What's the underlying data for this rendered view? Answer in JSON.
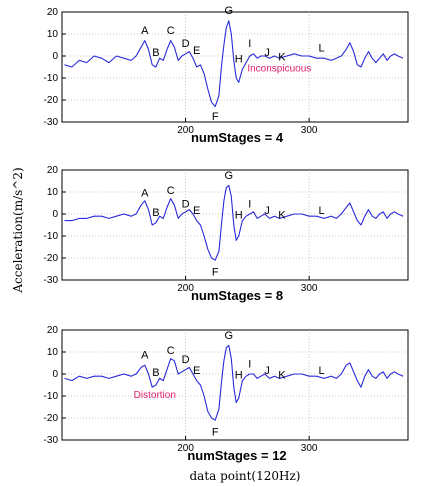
{
  "chart_data": {
    "type": "line",
    "ylabel": "Acceleration(m/s^2)",
    "xlabel": "data point(120Hz)",
    "xlim": [
      100,
      380
    ],
    "ylim": [
      -30,
      20
    ],
    "xticks": [
      200,
      300
    ],
    "yticks": [
      -30,
      -20,
      -10,
      0,
      10,
      20
    ],
    "series_color": "#2a2adc",
    "annotation_color": "#e0206a",
    "grid": true,
    "panels": [
      {
        "title": "numStages = 4",
        "points": [
          [
            102,
            -4
          ],
          [
            108,
            -5
          ],
          [
            114,
            -2
          ],
          [
            120,
            -3
          ],
          [
            126,
            0
          ],
          [
            132,
            -1
          ],
          [
            138,
            -3
          ],
          [
            144,
            0
          ],
          [
            150,
            -1
          ],
          [
            156,
            -2
          ],
          [
            160,
            0
          ],
          [
            164,
            4
          ],
          [
            167,
            7
          ],
          [
            170,
            3
          ],
          [
            173,
            -4
          ],
          [
            176,
            -5
          ],
          [
            179,
            -1
          ],
          [
            182,
            -2
          ],
          [
            185,
            3
          ],
          [
            188,
            7
          ],
          [
            191,
            4
          ],
          [
            194,
            -2
          ],
          [
            197,
            0
          ],
          [
            200,
            1
          ],
          [
            203,
            2
          ],
          [
            206,
            -1
          ],
          [
            209,
            -5
          ],
          [
            212,
            -4
          ],
          [
            215,
            -8
          ],
          [
            218,
            -15
          ],
          [
            221,
            -21
          ],
          [
            224,
            -23
          ],
          [
            227,
            -18
          ],
          [
            229,
            -5
          ],
          [
            231,
            5
          ],
          [
            233,
            13
          ],
          [
            235,
            16
          ],
          [
            237,
            10
          ],
          [
            239,
            -2
          ],
          [
            241,
            -10
          ],
          [
            243,
            -12
          ],
          [
            246,
            -6
          ],
          [
            249,
            -3
          ],
          [
            252,
            0
          ],
          [
            255,
            1
          ],
          [
            258,
            -1
          ],
          [
            261,
            0
          ],
          [
            264,
            0
          ],
          [
            268,
            -1
          ],
          [
            272,
            0
          ],
          [
            276,
            -1
          ],
          [
            282,
            0
          ],
          [
            288,
            1
          ],
          [
            294,
            0
          ],
          [
            300,
            0
          ],
          [
            306,
            -1
          ],
          [
            312,
            -1
          ],
          [
            318,
            -2
          ],
          [
            322,
            -1
          ],
          [
            326,
            0
          ],
          [
            330,
            3
          ],
          [
            333,
            6
          ],
          [
            336,
            2
          ],
          [
            339,
            -4
          ],
          [
            342,
            -5
          ],
          [
            345,
            -1
          ],
          [
            348,
            2
          ],
          [
            351,
            -1
          ],
          [
            354,
            -3
          ],
          [
            357,
            -1
          ],
          [
            360,
            1
          ],
          [
            363,
            -2
          ],
          [
            366,
            0
          ],
          [
            369,
            1
          ],
          [
            372,
            0
          ],
          [
            376,
            -1
          ]
        ],
        "labels": [
          {
            "text": "A",
            "x": 167,
            "y": 10
          },
          {
            "text": "B",
            "x": 176,
            "y": 0
          },
          {
            "text": "C",
            "x": 188,
            "y": 10
          },
          {
            "text": "D",
            "x": 200,
            "y": 4
          },
          {
            "text": "E",
            "x": 209,
            "y": 1
          },
          {
            "text": "F",
            "x": 224,
            "y": -29
          },
          {
            "text": "G",
            "x": 235,
            "y": 19
          },
          {
            "text": "H",
            "x": 243,
            "y": -3
          },
          {
            "text": "I",
            "x": 252,
            "y": 4
          },
          {
            "text": "J",
            "x": 266,
            "y": 0
          },
          {
            "text": "K",
            "x": 278,
            "y": -2
          },
          {
            "text": "L",
            "x": 310,
            "y": 2
          }
        ],
        "annotation": {
          "text": "Inconspicuous",
          "x": 250,
          "y": -7
        }
      },
      {
        "title": "numStages = 8",
        "points": [
          [
            102,
            -3
          ],
          [
            108,
            -3
          ],
          [
            114,
            -2
          ],
          [
            120,
            -2
          ],
          [
            126,
            -1
          ],
          [
            132,
            -1
          ],
          [
            138,
            -2
          ],
          [
            144,
            -1
          ],
          [
            150,
            0
          ],
          [
            156,
            -1
          ],
          [
            160,
            0
          ],
          [
            164,
            4
          ],
          [
            167,
            6
          ],
          [
            170,
            2
          ],
          [
            173,
            -5
          ],
          [
            176,
            -4
          ],
          [
            179,
            -1
          ],
          [
            182,
            -2
          ],
          [
            185,
            3
          ],
          [
            188,
            7
          ],
          [
            191,
            4
          ],
          [
            194,
            -2
          ],
          [
            197,
            0
          ],
          [
            200,
            1
          ],
          [
            203,
            2
          ],
          [
            206,
            0
          ],
          [
            209,
            -3
          ],
          [
            212,
            -5
          ],
          [
            215,
            -10
          ],
          [
            218,
            -16
          ],
          [
            221,
            -20
          ],
          [
            224,
            -21
          ],
          [
            227,
            -17
          ],
          [
            229,
            -5
          ],
          [
            231,
            6
          ],
          [
            233,
            12
          ],
          [
            235,
            13
          ],
          [
            237,
            8
          ],
          [
            239,
            -5
          ],
          [
            241,
            -12
          ],
          [
            243,
            -10
          ],
          [
            246,
            -3
          ],
          [
            249,
            -1
          ],
          [
            252,
            0
          ],
          [
            255,
            1
          ],
          [
            258,
            -2
          ],
          [
            261,
            -1
          ],
          [
            264,
            0
          ],
          [
            268,
            -2
          ],
          [
            272,
            -1
          ],
          [
            276,
            -2
          ],
          [
            282,
            -1
          ],
          [
            288,
            0
          ],
          [
            294,
            0
          ],
          [
            300,
            -1
          ],
          [
            306,
            -1
          ],
          [
            312,
            -2
          ],
          [
            318,
            -1
          ],
          [
            322,
            -2
          ],
          [
            326,
            0
          ],
          [
            330,
            3
          ],
          [
            333,
            5
          ],
          [
            336,
            1
          ],
          [
            339,
            -3
          ],
          [
            342,
            -5
          ],
          [
            345,
            -1
          ],
          [
            348,
            2
          ],
          [
            351,
            -1
          ],
          [
            354,
            -2
          ],
          [
            357,
            0
          ],
          [
            360,
            1
          ],
          [
            363,
            -2
          ],
          [
            366,
            0
          ],
          [
            369,
            1
          ],
          [
            372,
            0
          ],
          [
            376,
            -1
          ]
        ],
        "labels": [
          {
            "text": "A",
            "x": 167,
            "y": 8
          },
          {
            "text": "B",
            "x": 176,
            "y": -1
          },
          {
            "text": "C",
            "x": 188,
            "y": 9
          },
          {
            "text": "D",
            "x": 200,
            "y": 3
          },
          {
            "text": "E",
            "x": 209,
            "y": 0
          },
          {
            "text": "F",
            "x": 224,
            "y": -28
          },
          {
            "text": "G",
            "x": 235,
            "y": 16
          },
          {
            "text": "H",
            "x": 243,
            "y": -2
          },
          {
            "text": "I",
            "x": 252,
            "y": 3
          },
          {
            "text": "J",
            "x": 266,
            "y": 0
          },
          {
            "text": "K",
            "x": 278,
            "y": -2
          },
          {
            "text": "L",
            "x": 310,
            "y": 0
          }
        ]
      },
      {
        "title": "numStages = 12",
        "points": [
          [
            102,
            -2
          ],
          [
            108,
            -3
          ],
          [
            114,
            -1
          ],
          [
            120,
            -2
          ],
          [
            126,
            -1
          ],
          [
            132,
            -1
          ],
          [
            138,
            -2
          ],
          [
            144,
            -1
          ],
          [
            150,
            0
          ],
          [
            156,
            -1
          ],
          [
            160,
            0
          ],
          [
            164,
            3
          ],
          [
            167,
            4
          ],
          [
            170,
            0
          ],
          [
            173,
            -6
          ],
          [
            176,
            -5
          ],
          [
            179,
            -2
          ],
          [
            182,
            -3
          ],
          [
            185,
            2
          ],
          [
            188,
            7
          ],
          [
            191,
            6
          ],
          [
            194,
            0
          ],
          [
            197,
            1
          ],
          [
            200,
            2
          ],
          [
            203,
            3
          ],
          [
            206,
            0
          ],
          [
            209,
            -3
          ],
          [
            212,
            -5
          ],
          [
            215,
            -10
          ],
          [
            218,
            -17
          ],
          [
            221,
            -20
          ],
          [
            224,
            -21
          ],
          [
            227,
            -16
          ],
          [
            229,
            -4
          ],
          [
            231,
            6
          ],
          [
            233,
            12
          ],
          [
            235,
            13
          ],
          [
            237,
            7
          ],
          [
            239,
            -6
          ],
          [
            241,
            -13
          ],
          [
            243,
            -11
          ],
          [
            246,
            -3
          ],
          [
            249,
            -1
          ],
          [
            252,
            0
          ],
          [
            255,
            0
          ],
          [
            258,
            -2
          ],
          [
            261,
            -1
          ],
          [
            264,
            0
          ],
          [
            268,
            -2
          ],
          [
            272,
            -1
          ],
          [
            276,
            -2
          ],
          [
            282,
            -1
          ],
          [
            288,
            0
          ],
          [
            294,
            0
          ],
          [
            300,
            -1
          ],
          [
            306,
            -1
          ],
          [
            312,
            -2
          ],
          [
            318,
            -1
          ],
          [
            322,
            -2
          ],
          [
            326,
            0
          ],
          [
            330,
            4
          ],
          [
            333,
            5
          ],
          [
            336,
            1
          ],
          [
            339,
            -3
          ],
          [
            342,
            -6
          ],
          [
            345,
            -1
          ],
          [
            348,
            2
          ],
          [
            351,
            -1
          ],
          [
            354,
            -2
          ],
          [
            357,
            0
          ],
          [
            360,
            1
          ],
          [
            363,
            -2
          ],
          [
            366,
            0
          ],
          [
            369,
            1
          ],
          [
            372,
            0
          ],
          [
            376,
            -1
          ]
        ],
        "labels": [
          {
            "text": "A",
            "x": 167,
            "y": 7
          },
          {
            "text": "B",
            "x": 176,
            "y": -1
          },
          {
            "text": "C",
            "x": 188,
            "y": 9
          },
          {
            "text": "D",
            "x": 200,
            "y": 5
          },
          {
            "text": "E",
            "x": 209,
            "y": 0
          },
          {
            "text": "F",
            "x": 224,
            "y": -28
          },
          {
            "text": "G",
            "x": 235,
            "y": 16
          },
          {
            "text": "H",
            "x": 243,
            "y": -2
          },
          {
            "text": "I",
            "x": 252,
            "y": 3
          },
          {
            "text": "J",
            "x": 266,
            "y": 0
          },
          {
            "text": "K",
            "x": 278,
            "y": -2
          },
          {
            "text": "L",
            "x": 310,
            "y": 0
          }
        ],
        "annotation": {
          "text": "Distortion",
          "x": 158,
          "y": -11
        }
      }
    ]
  }
}
